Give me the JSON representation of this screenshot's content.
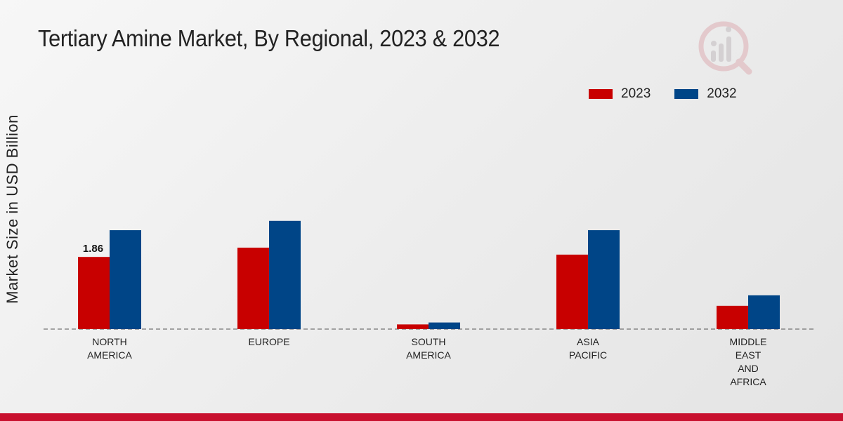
{
  "title": "Tertiary Amine Market, By Regional, 2023 & 2032",
  "colors": {
    "2023": "#c80000",
    "2032": "#004587",
    "accent": "#c8102e"
  },
  "logo_icon": "analytics-logo-icon",
  "chart_data": {
    "type": "bar",
    "title": "Tertiary Amine Market, By Regional, 2023 & 2032",
    "xlabel": "",
    "ylabel": "Market Size in USD Billion",
    "ylim": [
      0,
      5.5
    ],
    "grid": false,
    "legend_position": "top-right",
    "categories": [
      [
        "NORTH",
        "AMERICA"
      ],
      [
        "EUROPE"
      ],
      [
        "SOUTH",
        "AMERICA"
      ],
      [
        "ASIA",
        "PACIFIC"
      ],
      [
        "MIDDLE",
        "EAST",
        "AND",
        "AFRICA"
      ]
    ],
    "series": [
      {
        "name": "2023",
        "color": "#c80000",
        "values": [
          1.86,
          2.1,
          0.12,
          1.92,
          0.6
        ]
      },
      {
        "name": "2032",
        "color": "#004587",
        "values": [
          2.55,
          2.79,
          0.17,
          2.55,
          0.87
        ]
      }
    ],
    "annotations": [
      {
        "series": 0,
        "index": 0,
        "text": "1.86"
      }
    ]
  }
}
